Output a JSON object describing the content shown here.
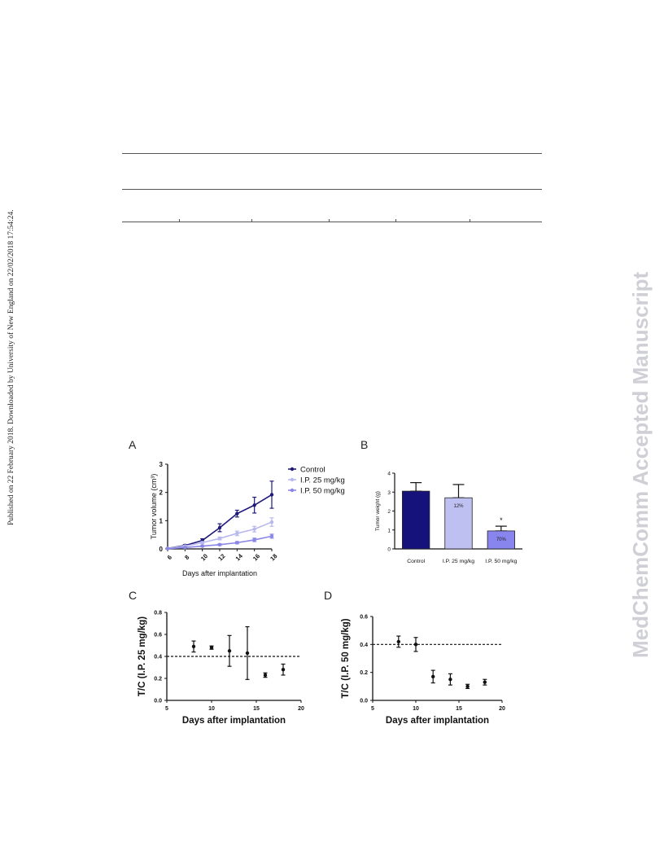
{
  "side_left_text": "Published on 22 February 2018. Downloaded by University of New England on 22/02/2018 17:54:24.",
  "side_right_text": "MedChemComm Accepted Manuscript",
  "chart_data": [
    {
      "panel": "A",
      "type": "line",
      "xlabel": "Days after implantation",
      "ylabel": "Tumor volume (cm³)",
      "xlim": [
        6,
        18
      ],
      "ylim": [
        0,
        3
      ],
      "xticks": [
        "6",
        "8",
        "10",
        "12",
        "14",
        "16",
        "18"
      ],
      "yticks": [
        "0",
        "1",
        "2",
        "3"
      ],
      "x": [
        6,
        8,
        10,
        12,
        14,
        16,
        18
      ],
      "legend_position": "top-right",
      "series": [
        {
          "name": "Control",
          "color": "#1f1a7a",
          "values": [
            0.02,
            0.12,
            0.3,
            0.75,
            1.25,
            1.55,
            1.92
          ],
          "err": [
            0.01,
            0.03,
            0.06,
            0.14,
            0.12,
            0.28,
            0.48
          ]
        },
        {
          "name": "I.P. 25 mg/kg",
          "color": "#b9b8ee",
          "values": [
            0.02,
            0.1,
            0.22,
            0.37,
            0.55,
            0.7,
            0.95
          ],
          "err": [
            0.01,
            0.02,
            0.04,
            0.05,
            0.08,
            0.1,
            0.15
          ]
        },
        {
          "name": "I.P. 50 mg/kg",
          "color": "#8a86e6",
          "values": [
            0.01,
            0.05,
            0.1,
            0.15,
            0.22,
            0.32,
            0.45
          ],
          "err": [
            0.01,
            0.01,
            0.02,
            0.03,
            0.04,
            0.06,
            0.07
          ]
        }
      ]
    },
    {
      "panel": "B",
      "type": "bar",
      "ylabel": "Tumor weight (g)",
      "ylim": [
        0,
        4
      ],
      "yticks": [
        "0",
        "1",
        "2",
        "3",
        "4"
      ],
      "categories": [
        "Control",
        "I.P. 25 mg/kg",
        "I.P. 50 mg/kg"
      ],
      "values": [
        3.05,
        2.7,
        0.95
      ],
      "err": [
        0.45,
        0.7,
        0.25
      ],
      "colors": [
        "#15127c",
        "#bfc0f2",
        "#8886ee"
      ],
      "bar_labels": [
        "",
        "12%",
        "70%"
      ],
      "annotations": [
        "",
        "",
        "*"
      ]
    },
    {
      "panel": "C",
      "type": "scatter",
      "xlabel": "Days after implantation",
      "ylabel": "T/C (I.P. 25 mg/kg)",
      "xlim": [
        5,
        20
      ],
      "ylim": [
        0,
        0.8
      ],
      "xticks": [
        "5",
        "10",
        "15",
        "20"
      ],
      "yticks": [
        "0.0",
        "0.2",
        "0.4",
        "0.6",
        "0.8"
      ],
      "x": [
        8,
        10,
        12,
        14,
        16,
        18
      ],
      "values": [
        0.49,
        0.48,
        0.45,
        0.43,
        0.23,
        0.28
      ],
      "err": [
        0.05,
        0.015,
        0.14,
        0.24,
        0.02,
        0.05
      ],
      "reference_line": 0.4
    },
    {
      "panel": "D",
      "type": "scatter",
      "xlabel": "Days after implantation",
      "ylabel": "T/C (I.P. 50 mg/kg)",
      "xlim": [
        5,
        20
      ],
      "ylim": [
        0,
        0.6
      ],
      "xticks": [
        "5",
        "10",
        "15",
        "20"
      ],
      "yticks": [
        "0.0",
        "0.2",
        "0.4",
        "0.6"
      ],
      "x": [
        8,
        10,
        12,
        14,
        16,
        18
      ],
      "values": [
        0.42,
        0.4,
        0.17,
        0.15,
        0.1,
        0.13
      ],
      "err": [
        0.04,
        0.05,
        0.045,
        0.04,
        0.015,
        0.02
      ],
      "reference_line": 0.4
    }
  ]
}
